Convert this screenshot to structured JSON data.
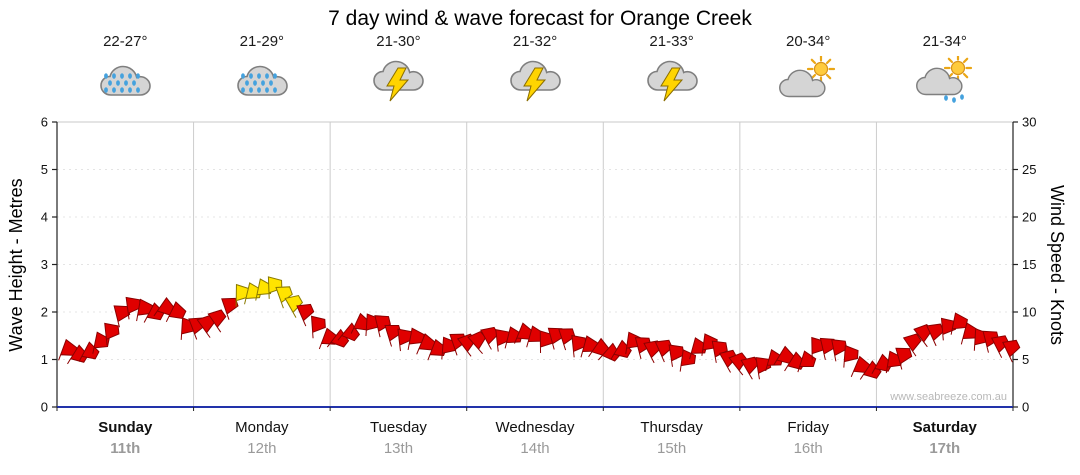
{
  "title": "7 day wind & wave forecast for Orange Creek",
  "axes": {
    "left_label": "Wave Height - Metres",
    "right_label": "Wind Speed - Knots"
  },
  "watermark": "www.seabreeze.com.au",
  "chart_data": {
    "type": "wind_barb_band",
    "title": "7 day wind & wave forecast for Orange Creek",
    "days": [
      {
        "name": "Sunday",
        "date": "11th",
        "temp": "22-27°",
        "icon": "rain-cloud",
        "weekend": true
      },
      {
        "name": "Monday",
        "date": "12th",
        "temp": "21-29°",
        "icon": "rain-cloud",
        "weekend": false
      },
      {
        "name": "Tuesday",
        "date": "13th",
        "temp": "21-30°",
        "icon": "storm-cloud",
        "weekend": false
      },
      {
        "name": "Wednesday",
        "date": "14th",
        "temp": "21-32°",
        "icon": "storm-cloud",
        "weekend": false
      },
      {
        "name": "Thursday",
        "date": "15th",
        "temp": "21-33°",
        "icon": "storm-cloud",
        "weekend": false
      },
      {
        "name": "Friday",
        "date": "16th",
        "temp": "20-34°",
        "icon": "sun-cloud",
        "weekend": false
      },
      {
        "name": "Saturday",
        "date": "17th",
        "temp": "21-34°",
        "icon": "sun-cloud-rain",
        "weekend": true
      }
    ],
    "y_left": {
      "label": "Wave Height - Metres",
      "min": 0,
      "max": 6,
      "tick_step": 1
    },
    "y_right": {
      "label": "Wind Speed - Knots",
      "min": 0,
      "max": 30,
      "tick_step": 5
    },
    "samples_per_day": 8,
    "wave_heights_m": [
      1.2,
      1.1,
      1.4,
      1.9,
      2.1,
      2.0,
      2.1,
      1.6,
      1.6,
      1.9,
      2.3,
      2.5,
      2.45,
      2.2,
      1.8,
      1.5,
      1.4,
      1.8,
      1.7,
      1.5,
      1.4,
      1.3,
      1.2,
      1.3,
      1.3,
      1.4,
      1.5,
      1.5,
      1.4,
      1.4,
      1.3,
      1.2,
      1.2,
      1.3,
      1.2,
      1.1,
      1.0,
      1.3,
      1.2,
      0.8,
      0.8,
      0.9,
      1.1,
      0.9,
      1.3,
      1.2,
      0.9,
      0.8,
      0.9,
      1.1,
      1.4,
      1.6,
      1.7,
      1.5,
      1.3,
      1.2
    ],
    "highlight": {
      "color": "#ffe400",
      "start_frac": 0.18,
      "end_frac": 0.255
    },
    "barb_color": "#e00000",
    "barb_outline": "#8b0000",
    "grid_color": "#cccccc",
    "baseline_color": "#2233aa"
  }
}
